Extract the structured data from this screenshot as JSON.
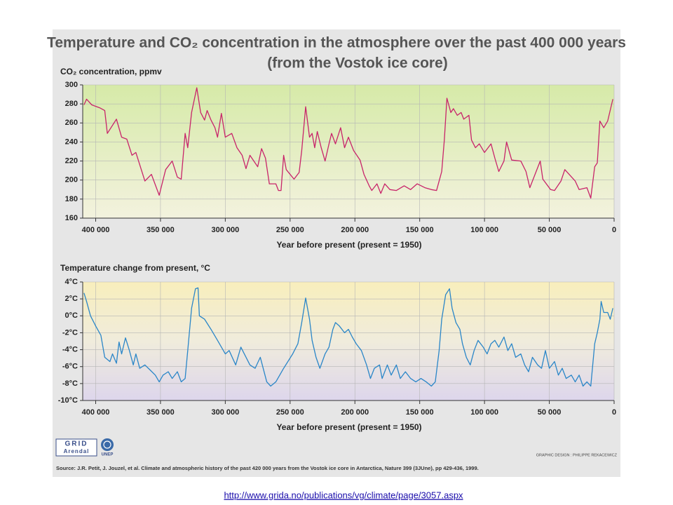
{
  "title": "Temperature and CO₂ concentration in the atmosphere over the past 400 000 years",
  "subtitle": "(from the Vostok ice core)",
  "chart_data": [
    {
      "type": "line",
      "title": "CO₂ concentration, ppmv",
      "x_label": "Year before present (present = 1950)",
      "color": "#c8246a",
      "grid": true,
      "xlim": [
        410000,
        0
      ],
      "xticks": [
        {
          "value": 400000,
          "label": "400 000"
        },
        {
          "value": 350000,
          "label": "350 000"
        },
        {
          "value": 300000,
          "label": "300 000"
        },
        {
          "value": 250000,
          "label": "250 000"
        },
        {
          "value": 200000,
          "label": "200 000"
        },
        {
          "value": 150000,
          "label": "150 000"
        },
        {
          "value": 100000,
          "label": "100 000"
        },
        {
          "value": 50000,
          "label": "50 000"
        },
        0
      ],
      "ylim": [
        160,
        300
      ],
      "yticks": [
        160,
        180,
        200,
        220,
        240,
        260,
        280,
        300
      ],
      "x": [
        409000,
        407000,
        403000,
        397000,
        393000,
        391000,
        384000,
        380000,
        376000,
        372000,
        369000,
        362000,
        357000,
        351000,
        346000,
        341000,
        337000,
        334000,
        331000,
        329000,
        326000,
        322000,
        319000,
        316000,
        314000,
        311000,
        308000,
        306000,
        303000,
        300000,
        295000,
        291000,
        287000,
        284000,
        281000,
        275000,
        272000,
        269000,
        266000,
        261000,
        259000,
        257000,
        255000,
        253000,
        247000,
        243000,
        241000,
        238000,
        235000,
        233000,
        231000,
        229000,
        226000,
        223000,
        220000,
        218000,
        215000,
        211000,
        208000,
        205000,
        201000,
        196000,
        193000,
        189000,
        187000,
        183000,
        180000,
        177000,
        173000,
        168000,
        162000,
        157000,
        152000,
        146000,
        141000,
        137000,
        133000,
        131000,
        129000,
        126000,
        124000,
        121000,
        118000,
        116000,
        112000,
        110000,
        107000,
        104000,
        100000,
        95000,
        92000,
        89000,
        85000,
        83000,
        79000,
        72000,
        68000,
        65000,
        57000,
        55000,
        49000,
        46000,
        41000,
        38000,
        30000,
        27000,
        21000,
        18000,
        15000,
        13000,
        11000,
        8000,
        5000,
        1000
      ],
      "values": [
        279,
        285,
        279,
        276,
        273,
        249,
        264,
        245,
        243,
        226,
        229,
        199,
        206,
        184,
        211,
        220,
        203,
        201,
        249,
        234,
        271,
        297,
        271,
        263,
        273,
        263,
        255,
        245,
        270,
        245,
        249,
        234,
        226,
        212,
        226,
        214,
        233,
        223,
        196,
        196,
        189,
        189,
        226,
        211,
        201,
        208,
        231,
        277,
        245,
        249,
        234,
        251,
        234,
        220,
        238,
        249,
        238,
        255,
        234,
        245,
        231,
        221,
        206,
        194,
        189,
        196,
        186,
        196,
        190,
        189,
        194,
        190,
        196,
        192,
        190,
        189,
        209,
        242,
        286,
        271,
        275,
        268,
        271,
        264,
        268,
        242,
        234,
        238,
        229,
        238,
        223,
        209,
        220,
        240,
        221,
        220,
        209,
        192,
        220,
        201,
        190,
        189,
        199,
        211,
        199,
        190,
        192,
        181,
        214,
        218,
        262,
        255,
        262,
        285
      ]
    },
    {
      "type": "line",
      "title": "Temperature change from present, °C",
      "x_label": "Year before present (present = 1950)",
      "color": "#2a86c8",
      "grid": true,
      "xlim": [
        410000,
        0
      ],
      "xticks": [
        {
          "value": 400000,
          "label": "400 000"
        },
        {
          "value": 350000,
          "label": "350 000"
        },
        {
          "value": 300000,
          "label": "300 000"
        },
        {
          "value": 250000,
          "label": "250 000"
        },
        {
          "value": 200000,
          "label": "200 000"
        },
        {
          "value": 150000,
          "label": "150 000"
        },
        {
          "value": 100000,
          "label": "100 000"
        },
        {
          "value": 50000,
          "label": "50 000"
        },
        0
      ],
      "ylim": [
        -10,
        4
      ],
      "yticks": [
        {
          "value": -10,
          "label": "-10°C"
        },
        {
          "value": -8,
          "label": "-8°C"
        },
        {
          "value": -6,
          "label": "-6°C"
        },
        {
          "value": -4,
          "label": "-4°C"
        },
        {
          "value": -2,
          "label": "-2°C"
        },
        {
          "value": 0,
          "label": "0°C"
        },
        {
          "value": 2,
          "label": "2°C"
        },
        {
          "value": 4,
          "label": "4°C"
        }
      ],
      "x": [
        409000,
        407000,
        404000,
        400000,
        396000,
        393000,
        389000,
        387000,
        384000,
        382000,
        380000,
        377000,
        374000,
        371000,
        369000,
        366000,
        362000,
        358000,
        354000,
        351000,
        348000,
        344000,
        341000,
        337000,
        334000,
        331000,
        329000,
        326000,
        323000,
        321000,
        320000,
        316000,
        311000,
        306000,
        300000,
        297000,
        292000,
        288000,
        281000,
        277000,
        273000,
        268000,
        265000,
        261000,
        255000,
        248000,
        244000,
        241000,
        238000,
        235000,
        233000,
        230000,
        227000,
        223000,
        220000,
        217000,
        215000,
        212000,
        208000,
        205000,
        202000,
        199000,
        195000,
        191000,
        188000,
        185000,
        181000,
        179000,
        175000,
        172000,
        168000,
        165000,
        161000,
        157000,
        153000,
        149000,
        145000,
        141000,
        138000,
        135000,
        133000,
        130000,
        127000,
        125000,
        122000,
        119000,
        117000,
        114000,
        111000,
        108000,
        105000,
        101000,
        98000,
        95000,
        92000,
        89000,
        85000,
        82000,
        79000,
        76000,
        72000,
        69000,
        66000,
        63000,
        59000,
        56000,
        53000,
        50000,
        46000,
        43000,
        40000,
        37000,
        33000,
        30000,
        27000,
        24000,
        21000,
        18000,
        15000,
        13000,
        11000,
        10000,
        8000,
        5000,
        3000,
        1000
      ],
      "values": [
        2.7,
        1.7,
        0.0,
        -1.2,
        -2.3,
        -4.9,
        -5.4,
        -4.5,
        -5.6,
        -3.1,
        -4.5,
        -2.6,
        -4.1,
        -5.8,
        -4.5,
        -6.2,
        -5.8,
        -6.4,
        -7.0,
        -7.8,
        -7.0,
        -6.6,
        -7.4,
        -6.6,
        -7.8,
        -7.4,
        -4.1,
        0.9,
        3.2,
        3.3,
        0.0,
        -0.4,
        -1.6,
        -2.9,
        -4.5,
        -4.1,
        -5.8,
        -3.7,
        -5.8,
        -6.2,
        -4.9,
        -7.8,
        -8.3,
        -7.8,
        -6.2,
        -4.5,
        -3.3,
        -0.8,
        2.1,
        -0.4,
        -2.9,
        -4.9,
        -6.2,
        -4.5,
        -3.7,
        -1.6,
        -0.8,
        -1.2,
        -2.0,
        -1.6,
        -2.5,
        -3.3,
        -4.1,
        -5.8,
        -7.4,
        -6.2,
        -5.8,
        -7.4,
        -5.8,
        -7.0,
        -5.8,
        -7.4,
        -6.6,
        -7.4,
        -7.8,
        -7.4,
        -7.8,
        -8.3,
        -7.8,
        -4.1,
        -0.4,
        2.5,
        3.2,
        0.9,
        -0.8,
        -1.6,
        -3.3,
        -4.9,
        -5.8,
        -4.1,
        -2.9,
        -3.7,
        -4.5,
        -3.3,
        -2.9,
        -3.7,
        -2.5,
        -4.1,
        -3.3,
        -4.9,
        -4.5,
        -5.8,
        -6.6,
        -4.9,
        -5.8,
        -6.2,
        -4.1,
        -6.2,
        -5.4,
        -7.0,
        -6.2,
        -7.4,
        -7.0,
        -7.8,
        -7.0,
        -8.3,
        -7.8,
        -8.3,
        -3.3,
        -2.0,
        -0.4,
        1.7,
        0.4,
        0.4,
        -0.4,
        0.9
      ]
    }
  ],
  "logos": [
    "GRID",
    "Arendal",
    "UNEP"
  ],
  "credit": "GRAPHIC DESIGN : PHILIPPE REKACEWICZ",
  "source": "Source: J.R. Petit, J. Jouzel, et al. Climate and atmospheric history of the past 420 000 years from the Vostok ice core in Antarctica, Nature 399 (3JUne), pp 429-436, 1999.",
  "link": "http://www.grida.no/publications/vg/climate/page/3057.aspx"
}
